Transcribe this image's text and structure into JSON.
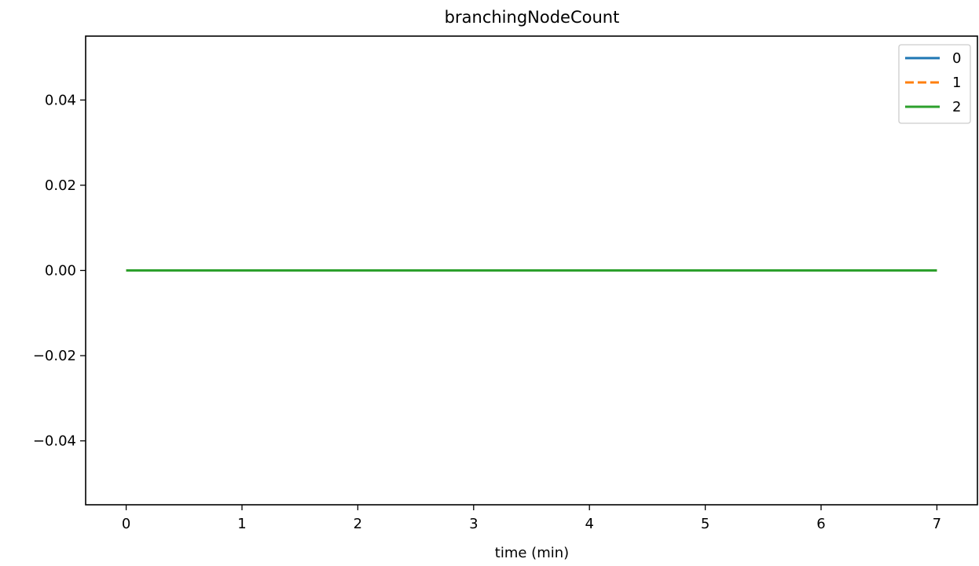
{
  "chart_data": {
    "type": "line",
    "title": "branchingNodeCount",
    "xlabel": "time (min)",
    "ylabel": "",
    "xlim": [
      -0.35,
      7.35
    ],
    "ylim": [
      -0.055,
      0.055
    ],
    "xticks": [
      0,
      1,
      2,
      3,
      4,
      5,
      6,
      7
    ],
    "xtick_labels": [
      "0",
      "1",
      "2",
      "3",
      "4",
      "5",
      "6",
      "7"
    ],
    "yticks": [
      -0.04,
      -0.02,
      0.0,
      0.02,
      0.04
    ],
    "ytick_labels": [
      "−0.04",
      "−0.02",
      "0.00",
      "0.02",
      "0.04"
    ],
    "grid": false,
    "legend_position": "top-right",
    "series": [
      {
        "name": "0",
        "color": "#1f77b4",
        "dash": "solid",
        "x": [
          0,
          1,
          2,
          3,
          4,
          5,
          6,
          7
        ],
        "y": [
          0,
          0,
          0,
          0,
          0,
          0,
          0,
          0
        ]
      },
      {
        "name": "1",
        "color": "#ff7f0e",
        "dash": "dashed",
        "x": [
          0,
          1,
          2,
          3,
          4,
          5,
          6,
          7
        ],
        "y": [
          0,
          0,
          0,
          0,
          0,
          0,
          0,
          0
        ]
      },
      {
        "name": "2",
        "color": "#2ca02c",
        "dash": "solid",
        "x": [
          0,
          1,
          2,
          3,
          4,
          5,
          6,
          7
        ],
        "y": [
          0,
          0,
          0,
          0,
          0,
          0,
          0,
          0
        ]
      }
    ]
  }
}
